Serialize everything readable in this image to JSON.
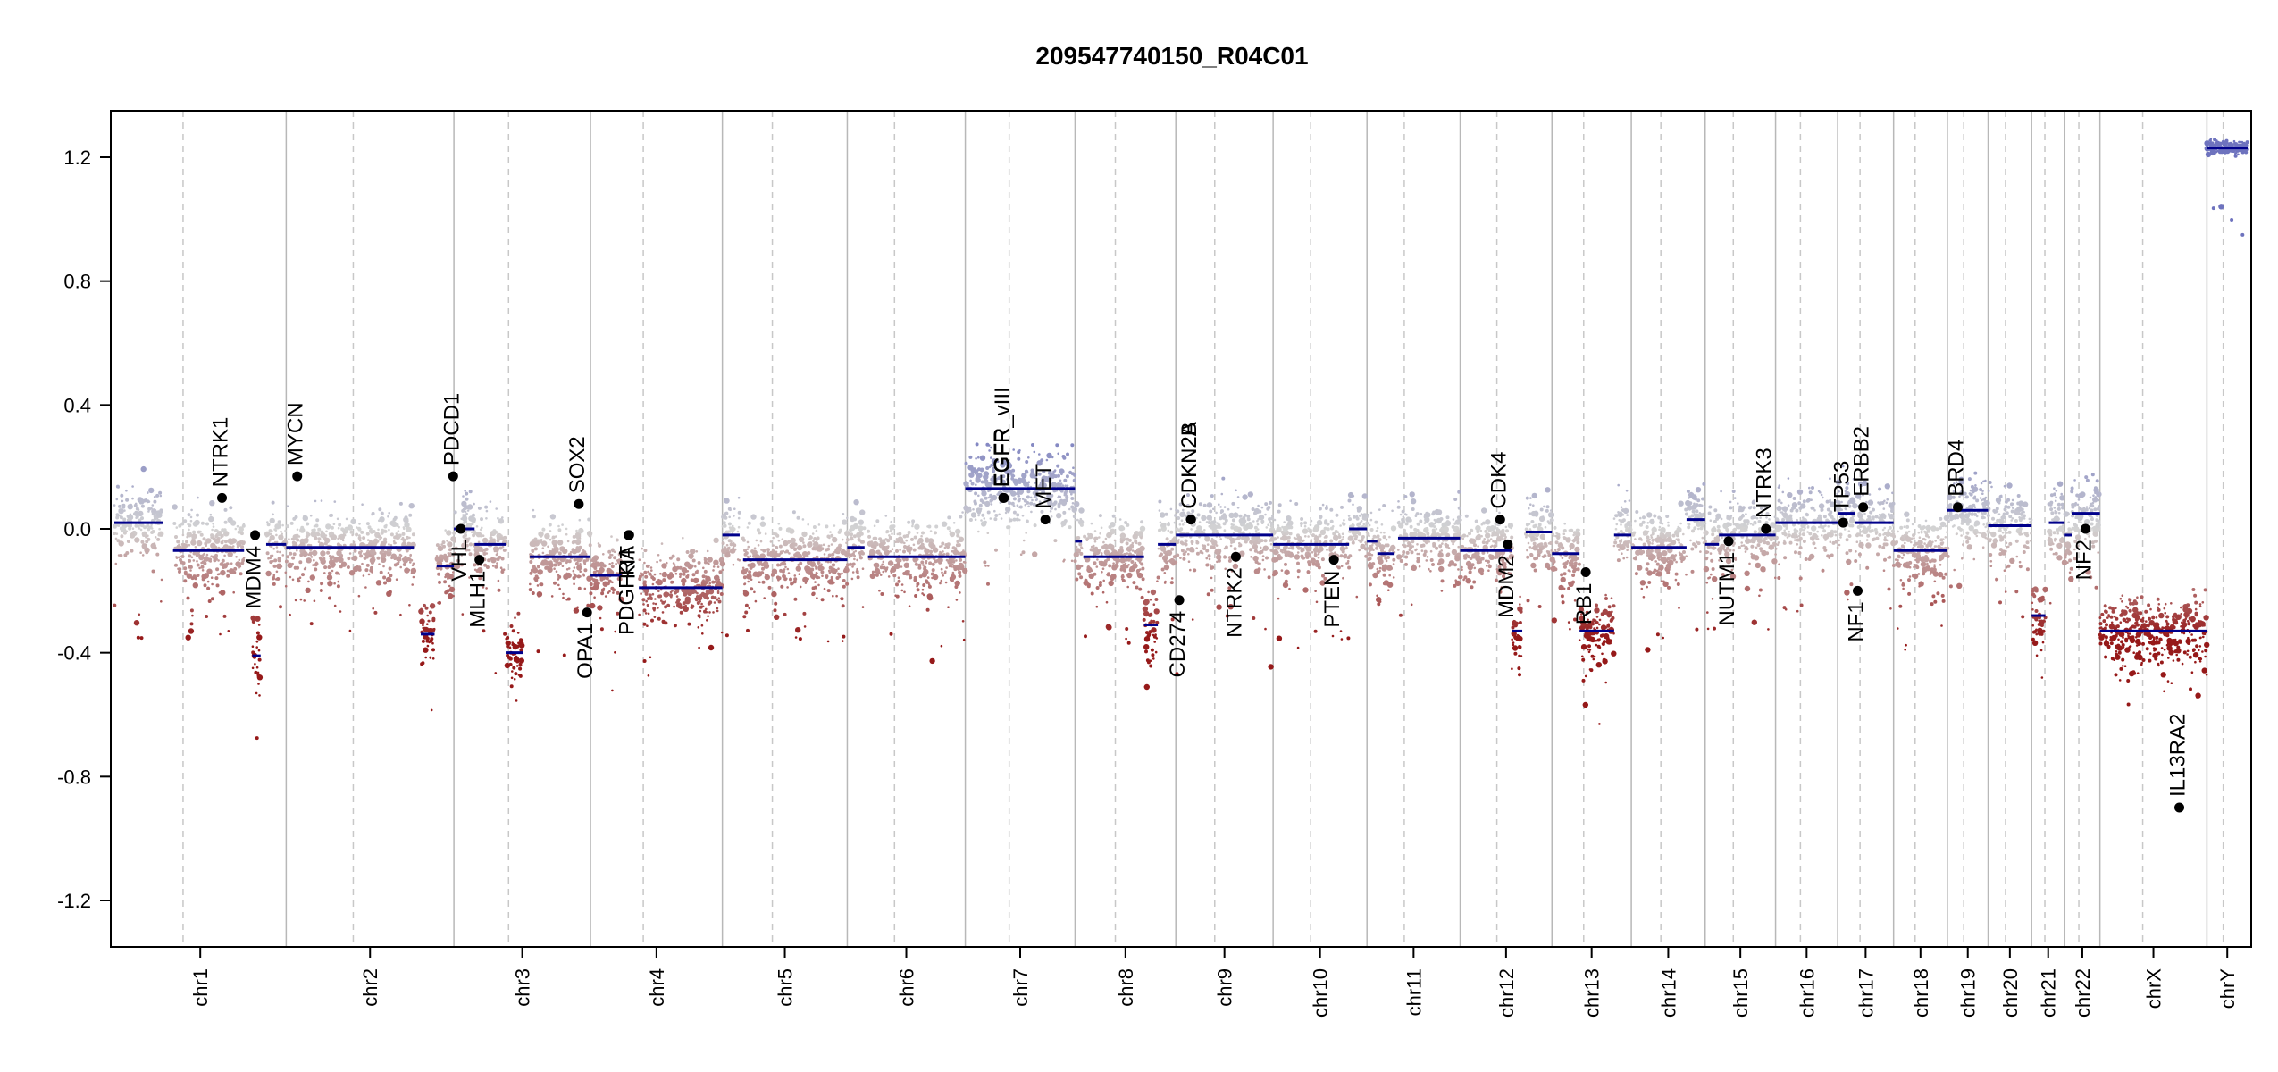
{
  "chart_data": {
    "type": "scatter",
    "title": "209547740150_R04C01",
    "xlabel": "",
    "ylabel": "",
    "ylim": [
      -1.35,
      1.35
    ],
    "yticks": [
      -1.2,
      -0.8,
      -0.4,
      0.0,
      0.4,
      0.8,
      1.2
    ],
    "ytick_labels": [
      "-1.2",
      "-0.8",
      "-0.4",
      "0.0",
      "0.4",
      "0.8",
      "1.2"
    ],
    "grid": false,
    "legend": "none",
    "point_colors": {
      "gain": "#8f94c7",
      "neutral": "#d3d3d3",
      "loss": "#9e2a2a"
    },
    "segment_color": "#00008b",
    "gene_point_color": "#000000",
    "chromosomes": [
      {
        "name": "chr1",
        "length": 249
      },
      {
        "name": "chr2",
        "length": 243
      },
      {
        "name": "chr3",
        "length": 198
      },
      {
        "name": "chr4",
        "length": 191
      },
      {
        "name": "chr5",
        "length": 181
      },
      {
        "name": "chr6",
        "length": 171
      },
      {
        "name": "chr7",
        "length": 159
      },
      {
        "name": "chr8",
        "length": 146
      },
      {
        "name": "chr9",
        "length": 141
      },
      {
        "name": "chr10",
        "length": 136
      },
      {
        "name": "chr11",
        "length": 135
      },
      {
        "name": "chr12",
        "length": 133
      },
      {
        "name": "chr13",
        "length": 115
      },
      {
        "name": "chr14",
        "length": 107
      },
      {
        "name": "chr15",
        "length": 102
      },
      {
        "name": "chr16",
        "length": 90
      },
      {
        "name": "chr17",
        "length": 81
      },
      {
        "name": "chr18",
        "length": 78
      },
      {
        "name": "chr19",
        "length": 59
      },
      {
        "name": "chr20",
        "length": 63
      },
      {
        "name": "chr21",
        "length": 48
      },
      {
        "name": "chr22",
        "length": 51
      },
      {
        "name": "chrX",
        "length": 155
      },
      {
        "name": "chrY",
        "length": 59
      }
    ],
    "segments": [
      {
        "chr": "chr1",
        "start": 0,
        "end": 70,
        "value": 0.02
      },
      {
        "chr": "chr1",
        "start": 85,
        "end": 188,
        "value": -0.07
      },
      {
        "chr": "chr1",
        "start": 200,
        "end": 212,
        "value": -0.41
      },
      {
        "chr": "chr1",
        "start": 220,
        "end": 249,
        "value": -0.05
      },
      {
        "chr": "chr2",
        "start": 0,
        "end": 185,
        "value": -0.06
      },
      {
        "chr": "chr2",
        "start": 195,
        "end": 215,
        "value": -0.34
      },
      {
        "chr": "chr2",
        "start": 218,
        "end": 243,
        "value": -0.12
      },
      {
        "chr": "chr3",
        "start": 0,
        "end": 30,
        "value": 0.0
      },
      {
        "chr": "chr3",
        "start": 30,
        "end": 75,
        "value": -0.05
      },
      {
        "chr": "chr3",
        "start": 75,
        "end": 100,
        "value": -0.4
      },
      {
        "chr": "chr3",
        "start": 110,
        "end": 198,
        "value": -0.09
      },
      {
        "chr": "chr4",
        "start": 0,
        "end": 45,
        "value": -0.15
      },
      {
        "chr": "chr4",
        "start": 70,
        "end": 191,
        "value": -0.19
      },
      {
        "chr": "chr5",
        "start": 0,
        "end": 25,
        "value": -0.02
      },
      {
        "chr": "chr5",
        "start": 30,
        "end": 181,
        "value": -0.1
      },
      {
        "chr": "chr6",
        "start": 0,
        "end": 25,
        "value": -0.06
      },
      {
        "chr": "chr6",
        "start": 30,
        "end": 171,
        "value": -0.09
      },
      {
        "chr": "chr7",
        "start": 0,
        "end": 159,
        "value": 0.13
      },
      {
        "chr": "chr8",
        "start": 0,
        "end": 10,
        "value": -0.04
      },
      {
        "chr": "chr8",
        "start": 12,
        "end": 100,
        "value": -0.09
      },
      {
        "chr": "chr8",
        "start": 100,
        "end": 120,
        "value": -0.31
      },
      {
        "chr": "chr8",
        "start": 120,
        "end": 146,
        "value": -0.05
      },
      {
        "chr": "chr9",
        "start": 0,
        "end": 141,
        "value": -0.02
      },
      {
        "chr": "chr10",
        "start": 0,
        "end": 110,
        "value": -0.05
      },
      {
        "chr": "chr10",
        "start": 110,
        "end": 136,
        "value": 0.0
      },
      {
        "chr": "chr11",
        "start": 0,
        "end": 15,
        "value": -0.04
      },
      {
        "chr": "chr11",
        "start": 15,
        "end": 40,
        "value": -0.08
      },
      {
        "chr": "chr11",
        "start": 45,
        "end": 135,
        "value": -0.03
      },
      {
        "chr": "chr12",
        "start": 0,
        "end": 75,
        "value": -0.07
      },
      {
        "chr": "chr12",
        "start": 75,
        "end": 90,
        "value": -0.33
      },
      {
        "chr": "chr12",
        "start": 95,
        "end": 133,
        "value": -0.01
      },
      {
        "chr": "chr13",
        "start": 0,
        "end": 40,
        "value": -0.08
      },
      {
        "chr": "chr13",
        "start": 40,
        "end": 90,
        "value": -0.33
      },
      {
        "chr": "chr13",
        "start": 90,
        "end": 115,
        "value": -0.02
      },
      {
        "chr": "chr14",
        "start": 0,
        "end": 80,
        "value": -0.06
      },
      {
        "chr": "chr14",
        "start": 80,
        "end": 107,
        "value": 0.03
      },
      {
        "chr": "chr15",
        "start": 0,
        "end": 20,
        "value": -0.05
      },
      {
        "chr": "chr15",
        "start": 20,
        "end": 102,
        "value": -0.02
      },
      {
        "chr": "chr16",
        "start": 0,
        "end": 90,
        "value": 0.02
      },
      {
        "chr": "chr17",
        "start": 0,
        "end": 25,
        "value": 0.05
      },
      {
        "chr": "chr17",
        "start": 25,
        "end": 81,
        "value": 0.02
      },
      {
        "chr": "chr18",
        "start": 0,
        "end": 78,
        "value": -0.07
      },
      {
        "chr": "chr19",
        "start": 0,
        "end": 59,
        "value": 0.06
      },
      {
        "chr": "chr20",
        "start": 0,
        "end": 63,
        "value": 0.01
      },
      {
        "chr": "chr21",
        "start": 0,
        "end": 20,
        "value": -0.28
      },
      {
        "chr": "chr21",
        "start": 25,
        "end": 48,
        "value": 0.02
      },
      {
        "chr": "chr22",
        "start": 0,
        "end": 10,
        "value": -0.02
      },
      {
        "chr": "chr22",
        "start": 10,
        "end": 51,
        "value": 0.05
      },
      {
        "chr": "chrX",
        "start": 0,
        "end": 155,
        "value": -0.33
      },
      {
        "chr": "chrY",
        "start": 0,
        "end": 59,
        "value": 1.23
      }
    ],
    "genes": [
      {
        "name": "NTRK1",
        "chr": "chr1",
        "pos": 156,
        "value": 0.1,
        "label_side": "above"
      },
      {
        "name": "MDM4",
        "chr": "chr1",
        "pos": 204,
        "value": -0.02,
        "label_side": "below"
      },
      {
        "name": "MYCN",
        "chr": "chr2",
        "pos": 16,
        "value": 0.17,
        "label_side": "above"
      },
      {
        "name": "PDCD1",
        "chr": "chr2",
        "pos": 242,
        "value": 0.17,
        "label_side": "above"
      },
      {
        "name": "VHL",
        "chr": "chr3",
        "pos": 10,
        "value": 0.0,
        "label_side": "below"
      },
      {
        "name": "MLH1",
        "chr": "chr3",
        "pos": 37,
        "value": -0.1,
        "label_side": "below"
      },
      {
        "name": "SOX2",
        "chr": "chr3",
        "pos": 181,
        "value": 0.08,
        "label_side": "above"
      },
      {
        "name": "OPA1",
        "chr": "chr3",
        "pos": 193,
        "value": -0.27,
        "label_side": "below"
      },
      {
        "name": "PDGFRA",
        "chr": "chr4",
        "pos": 55,
        "value": -0.02,
        "label_side": "below"
      },
      {
        "name": "KIT",
        "chr": "chr4",
        "pos": 56,
        "value": -0.02,
        "label_side": "below"
      },
      {
        "name": "EGFR",
        "chr": "chr7",
        "pos": 55,
        "value": 0.1,
        "label_side": "above"
      },
      {
        "name": "EGFR_vIII",
        "chr": "chr7",
        "pos": 56,
        "value": 0.1,
        "label_side": "above"
      },
      {
        "name": "MET",
        "chr": "chr7",
        "pos": 116,
        "value": 0.03,
        "label_side": "above"
      },
      {
        "name": "CDKN2A",
        "chr": "chr9",
        "pos": 22,
        "value": 0.03,
        "label_side": "above"
      },
      {
        "name": "CDKN2B",
        "chr": "chr9",
        "pos": 22,
        "value": 0.03,
        "label_side": "above"
      },
      {
        "name": "CD274",
        "chr": "chr9",
        "pos": 5,
        "value": -0.23,
        "label_side": "below"
      },
      {
        "name": "NTRK2",
        "chr": "chr9",
        "pos": 87,
        "value": -0.09,
        "label_side": "below"
      },
      {
        "name": "PTEN",
        "chr": "chr10",
        "pos": 88,
        "value": -0.1,
        "label_side": "below"
      },
      {
        "name": "CDK4",
        "chr": "chr12",
        "pos": 58,
        "value": 0.03,
        "label_side": "above"
      },
      {
        "name": "MDM2",
        "chr": "chr12",
        "pos": 69,
        "value": -0.05,
        "label_side": "below"
      },
      {
        "name": "RB1",
        "chr": "chr13",
        "pos": 49,
        "value": -0.14,
        "label_side": "below"
      },
      {
        "name": "NUTM1",
        "chr": "chr15",
        "pos": 34,
        "value": -0.04,
        "label_side": "below"
      },
      {
        "name": "NTRK3",
        "chr": "chr15",
        "pos": 88,
        "value": 0.0,
        "label_side": "above"
      },
      {
        "name": "TP53",
        "chr": "chr17",
        "pos": 8,
        "value": 0.02,
        "label_side": "above"
      },
      {
        "name": "NF1",
        "chr": "chr17",
        "pos": 29,
        "value": -0.2,
        "label_side": "below"
      },
      {
        "name": "ERBB2",
        "chr": "chr17",
        "pos": 37,
        "value": 0.07,
        "label_side": "above"
      },
      {
        "name": "BRD4",
        "chr": "chr19",
        "pos": 15,
        "value": 0.07,
        "label_side": "above"
      },
      {
        "name": "NF2",
        "chr": "chr22",
        "pos": 30,
        "value": 0.0,
        "label_side": "below"
      },
      {
        "name": "IL13RA2",
        "chr": "chrX",
        "pos": 115,
        "value": -0.9,
        "label_side": "above"
      }
    ]
  }
}
